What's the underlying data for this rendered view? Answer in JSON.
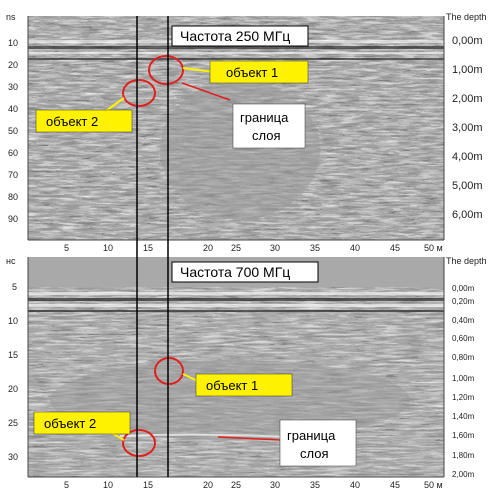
{
  "top_panel": {
    "unit_label": "ns",
    "depth_header": "The depth",
    "frequency_label": "Частота 250 МГц",
    "time_ticks": [
      "10",
      "20",
      "30",
      "40",
      "50",
      "60",
      "70",
      "80",
      "90"
    ],
    "depth_ticks": [
      "0,00m",
      "1,00m",
      "2,00m",
      "3,00m",
      "4,00m",
      "5,00m",
      "6,00m"
    ],
    "x_ticks": [
      "5",
      "10",
      "15",
      "20",
      "25",
      "30",
      "35",
      "40",
      "45"
    ],
    "x_end_label": "50 м",
    "object1_label": "объект 1",
    "object2_label": "объект 2",
    "layer_label_line1": "граница",
    "layer_label_line2": "слоя"
  },
  "bottom_panel": {
    "unit_label": "нс",
    "depth_header": "The depth",
    "frequency_label": "Частота 700 МГц",
    "time_ticks": [
      "5",
      "10",
      "15",
      "20",
      "25",
      "30"
    ],
    "depth_ticks": [
      "0,00m",
      "0,20m",
      "0,40m",
      "0,60m",
      "0,80m",
      "1,00m",
      "1,20m",
      "1,40m",
      "1,60m",
      "1,80m",
      "2,00m"
    ],
    "x_ticks": [
      "5",
      "10",
      "15",
      "20",
      "25",
      "30",
      "35",
      "40",
      "45"
    ],
    "x_end_label": "50 м",
    "object1_label": "объект 1",
    "object2_label": "объект 2",
    "layer_label_line1": "граница",
    "layer_label_line2": "слоя"
  },
  "colors": {
    "label_fill": "#fff200",
    "marker_stroke": "#e0201c",
    "panel_header": "#a9a9a9"
  }
}
